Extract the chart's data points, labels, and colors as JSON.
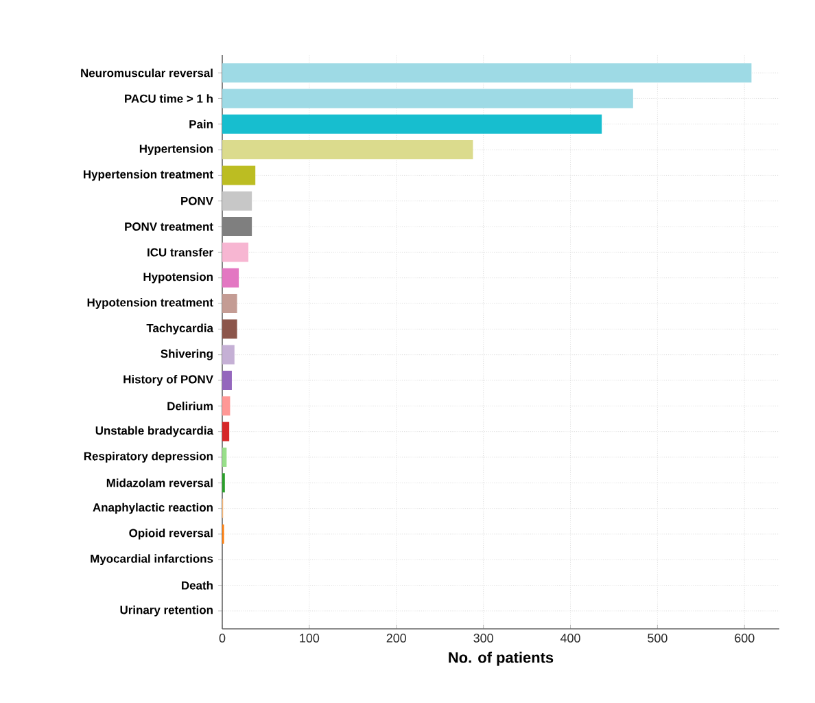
{
  "chart_data": {
    "type": "bar",
    "orientation": "horizontal",
    "xlabel": "No. of patients",
    "categories": [
      "Neuromuscular reversal",
      "PACU time > 1 h",
      "Pain",
      "Hypertension",
      "Hypertension treatment",
      "PONV",
      "PONV treatment",
      "ICU transfer",
      "Hypotension",
      "Hypotension treatment",
      "Tachycardia",
      "Shivering",
      "History of PONV",
      "Delirium",
      "Unstable bradycardia",
      "Respiratory depression",
      "Midazolam reversal",
      "Anaphylactic reaction",
      "Opioid reversal",
      "Myocardial infarctions",
      "Death",
      "Urinary retention"
    ],
    "values": [
      608,
      472,
      436,
      288,
      38,
      34,
      34,
      30,
      19,
      17,
      17,
      14,
      11,
      9,
      8,
      5,
      3,
      1,
      2,
      null,
      0,
      0
    ],
    "colors": [
      "#9edae5",
      "#9edae5",
      "#17becf",
      "#dbdb8d",
      "#bcbd22",
      "#c7c7c7",
      "#7f7f7f",
      "#f7b6d2",
      "#e377c2",
      "#c49c94",
      "#8c564b",
      "#c5b0d5",
      "#9467bd",
      "#ff9896",
      "#d62728",
      "#98df8a",
      "#2ca02c",
      "#ffbb78",
      "#ff7f0e",
      "#aec7e8",
      "#1f77b4",
      "#9edae5"
    ],
    "xlim": [
      0,
      640
    ],
    "xticks": [
      0,
      100,
      200,
      300,
      400,
      500,
      600
    ],
    "grid": true
  }
}
